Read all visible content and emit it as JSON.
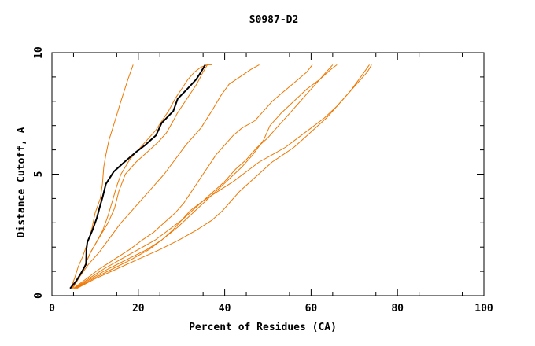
{
  "chart_data": {
    "type": "line",
    "title": "S0987-D2",
    "xlabel": "Percent of Residues (CA)",
    "ylabel": "Distance Cutoff, A",
    "xlim": [
      0,
      100
    ],
    "ylim": [
      0,
      10
    ],
    "xticks": [
      "0",
      "20",
      "40",
      "60",
      "80",
      "100"
    ],
    "yticks": [
      "0",
      "5",
      "10"
    ],
    "grid": false,
    "colors": {
      "highlight": "#000000",
      "others": "#ee7700"
    },
    "series": [
      {
        "highlight": true,
        "x": [
          4.2,
          5.6,
          7.0,
          7.9,
          8.0,
          8.2,
          9.4,
          10.4,
          11.0,
          11.8,
          12.5,
          14.3,
          16.8,
          19.4,
          21.6,
          24.1,
          25.4,
          28.1,
          29.1,
          31.3,
          33.4,
          34.5,
          35.5
        ],
        "y": [
          0.3,
          0.6,
          1.0,
          1.3,
          1.9,
          2.2,
          2.7,
          3.2,
          3.6,
          4.1,
          4.6,
          5.1,
          5.5,
          5.9,
          6.2,
          6.6,
          7.1,
          7.6,
          8.1,
          8.5,
          8.9,
          9.2,
          9.5
        ]
      },
      {
        "x": [
          4.4,
          5.4,
          6.1,
          7.1,
          7.9,
          8.7,
          9.3,
          10.0,
          11.2,
          11.7,
          12.0,
          12.5,
          13.2,
          14.6,
          15.8,
          17.6,
          18.8
        ],
        "y": [
          0.3,
          0.8,
          1.2,
          1.6,
          2.0,
          2.4,
          2.8,
          3.4,
          4.0,
          4.6,
          5.3,
          5.8,
          6.4,
          7.2,
          7.9,
          8.9,
          9.5
        ]
      },
      {
        "x": [
          4.6,
          6.0,
          7.5,
          8.7,
          10.3,
          11.8,
          13.0,
          14.0,
          15.0,
          16.0,
          18.0,
          20.0,
          22.0,
          24.0,
          25.5,
          27.0,
          28.5,
          30.0,
          31.5,
          33.0,
          34.5,
          36.0,
          37.0
        ],
        "y": [
          0.3,
          0.7,
          1.2,
          1.7,
          2.2,
          2.7,
          3.3,
          3.9,
          4.5,
          5.0,
          5.6,
          6.0,
          6.4,
          6.8,
          7.2,
          7.6,
          8.1,
          8.5,
          8.9,
          9.2,
          9.4,
          9.5,
          9.5
        ]
      },
      {
        "x": [
          4.6,
          6.0,
          7.5,
          9.0,
          11.0,
          13.0,
          14.5,
          15.5,
          17.0,
          19.5,
          22.0,
          24.5,
          26.5,
          27.8,
          29.0,
          30.5,
          32.0,
          33.5,
          35.0,
          36.0
        ],
        "y": [
          0.3,
          0.7,
          1.2,
          1.8,
          2.4,
          3.0,
          3.6,
          4.3,
          5.0,
          5.5,
          5.9,
          6.3,
          6.7,
          7.1,
          7.5,
          7.9,
          8.3,
          8.7,
          9.2,
          9.5
        ]
      },
      {
        "x": [
          4.8,
          6.5,
          8.5,
          11.0,
          13.5,
          16.0,
          18.5,
          21.0,
          23.5,
          26.0,
          28.5,
          31.0,
          34.5,
          37.0,
          39.0,
          41.0,
          43.5,
          46.0,
          48.0
        ],
        "y": [
          0.3,
          0.8,
          1.3,
          1.8,
          2.4,
          3.0,
          3.5,
          4.0,
          4.5,
          5.0,
          5.6,
          6.2,
          6.9,
          7.6,
          8.2,
          8.7,
          9.0,
          9.3,
          9.5
        ]
      },
      {
        "x": [
          5.0,
          8.0,
          11.0,
          14.5,
          18.0,
          21.0,
          23.5,
          26.0,
          28.5,
          30.5,
          32.0,
          33.5,
          35.0,
          36.5,
          38.0,
          40.0,
          42.0,
          44.0,
          47.0,
          49.0,
          51.0,
          53.0,
          55.0,
          57.0,
          59.0,
          60.3
        ],
        "y": [
          0.3,
          0.7,
          1.1,
          1.5,
          1.9,
          2.3,
          2.6,
          3.0,
          3.4,
          3.8,
          4.2,
          4.6,
          5.0,
          5.4,
          5.8,
          6.2,
          6.6,
          6.9,
          7.2,
          7.6,
          8.0,
          8.3,
          8.6,
          8.9,
          9.2,
          9.5
        ]
      },
      {
        "x": [
          5.2,
          8.5,
          12.0,
          16.0,
          20.0,
          24.0,
          27.0,
          30.0,
          32.5,
          35.0,
          37.5,
          40.0,
          42.5,
          45.0,
          47.5,
          50.0,
          52.5,
          55.0,
          57.5,
          60.0,
          62.0,
          64.0,
          65.0
        ],
        "y": [
          0.3,
          0.7,
          1.1,
          1.5,
          1.9,
          2.3,
          2.7,
          3.1,
          3.5,
          3.9,
          4.3,
          4.7,
          5.2,
          5.6,
          6.1,
          6.5,
          7.0,
          7.5,
          8.0,
          8.5,
          8.9,
          9.3,
          9.5
        ]
      },
      {
        "x": [
          5.4,
          9.0,
          13.0,
          17.5,
          22.0,
          25.5,
          29.0,
          32.0,
          35.0,
          38.0,
          41.0,
          44.0,
          46.5,
          49.0,
          50.5,
          53.0,
          56.0,
          59.0,
          62.0,
          64.5,
          66.0
        ],
        "y": [
          0.3,
          0.7,
          1.1,
          1.5,
          1.9,
          2.3,
          2.8,
          3.3,
          3.8,
          4.3,
          4.8,
          5.3,
          5.8,
          6.4,
          7.0,
          7.5,
          8.0,
          8.5,
          8.9,
          9.3,
          9.5
        ]
      },
      {
        "x": [
          5.6,
          9.5,
          14.0,
          18.5,
          22.5,
          25.5,
          28.0,
          30.0,
          32.0,
          35.0,
          38.5,
          42.0,
          45.0,
          48.0,
          51.0,
          54.0,
          57.0,
          60.0,
          63.0,
          66.0,
          69.0,
          71.5,
          73.5
        ],
        "y": [
          0.3,
          0.7,
          1.1,
          1.5,
          1.9,
          2.3,
          2.7,
          3.1,
          3.5,
          3.9,
          4.3,
          4.7,
          5.1,
          5.5,
          5.8,
          6.1,
          6.5,
          6.9,
          7.3,
          7.8,
          8.4,
          9.0,
          9.5
        ]
      },
      {
        "x": [
          5.8,
          10.0,
          15.0,
          20.0,
          25.0,
          29.5,
          33.5,
          37.0,
          39.5,
          41.5,
          43.5,
          46.0,
          48.5,
          51.0,
          53.5,
          56.0,
          58.5,
          61.0,
          63.5,
          66.0,
          68.5,
          71.0,
          73.0,
          74.0
        ],
        "y": [
          0.3,
          0.7,
          1.1,
          1.5,
          1.9,
          2.3,
          2.7,
          3.1,
          3.5,
          3.9,
          4.3,
          4.7,
          5.1,
          5.5,
          5.8,
          6.1,
          6.5,
          6.9,
          7.3,
          7.8,
          8.3,
          8.8,
          9.2,
          9.5
        ]
      }
    ]
  }
}
